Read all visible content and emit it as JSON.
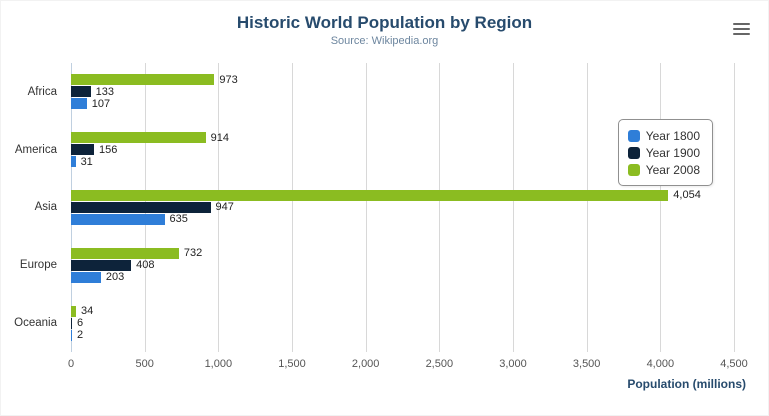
{
  "header": {
    "title": "Historic World Population by Region",
    "subtitle": "Source: Wikipedia.org"
  },
  "menu_icon": "hamburger-icon",
  "chart_data": {
    "type": "bar",
    "orientation": "horizontal",
    "title": "Historic World Population by Region",
    "subtitle": "Source: Wikipedia.org",
    "categories": [
      "Africa",
      "America",
      "Asia",
      "Europe",
      "Oceania"
    ],
    "series": [
      {
        "name": "Year 1800",
        "color": "#2f7ed8",
        "values": [
          107,
          31,
          635,
          203,
          2
        ]
      },
      {
        "name": "Year 1900",
        "color": "#0d233a",
        "values": [
          133,
          156,
          947,
          408,
          6
        ]
      },
      {
        "name": "Year 2008",
        "color": "#8bbc21",
        "values": [
          973,
          914,
          4054,
          732,
          34
        ]
      }
    ],
    "bar_order_top_to_bottom": [
      "Year 2008",
      "Year 1900",
      "Year 1800"
    ],
    "xlabel": "Population (millions)",
    "xlim": [
      0,
      4500
    ],
    "xticks": [
      0,
      500,
      1000,
      1500,
      2000,
      2500,
      3000,
      3500,
      4000,
      4500
    ],
    "grid": true,
    "legend_position": "right",
    "data_labels": true
  }
}
